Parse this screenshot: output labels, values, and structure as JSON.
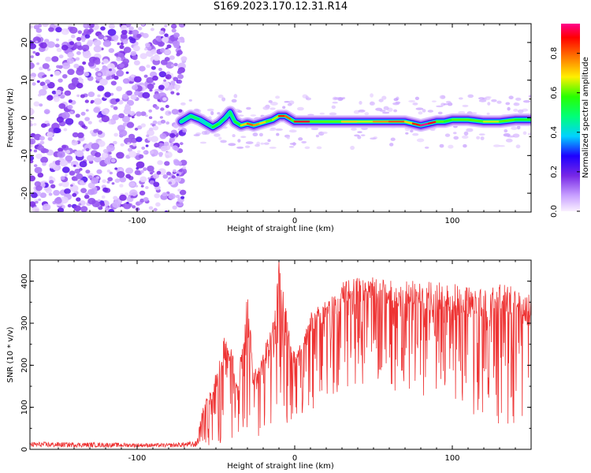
{
  "title": "S169.2023.170.12.31.R14",
  "chart_data": [
    {
      "type": "heatmap",
      "xlabel": "Height of straight line (km)",
      "ylabel": "Frequency (Hz)",
      "xlim": [
        -168,
        150
      ],
      "ylim": [
        -25,
        25
      ],
      "xticks": [
        -100,
        0,
        100
      ],
      "yticks": [
        -20,
        -10,
        0,
        10,
        20
      ],
      "description_of_content": "",
      "noise_region_x": [
        -168,
        -72
      ],
      "ridge": {
        "x": [
          -72,
          -66,
          -60,
          -56,
          -52,
          -48,
          -44,
          -41,
          -38,
          -34,
          -30,
          -26,
          -22,
          -18,
          -14,
          -10,
          -6,
          -2,
          0,
          10,
          20,
          30,
          40,
          50,
          60,
          70,
          75,
          80,
          85,
          90,
          95,
          100,
          110,
          120,
          130,
          140,
          150
        ],
        "freq": [
          -1,
          0.5,
          -0.5,
          -1.5,
          -2.5,
          -1.5,
          0,
          1.5,
          -1,
          -2,
          -1.5,
          -2,
          -1.5,
          -1,
          -0.5,
          0.5,
          0.5,
          -0.5,
          -1,
          -1,
          -1,
          -1,
          -1,
          -1,
          -1,
          -1,
          -1.5,
          -2,
          -1.5,
          -1,
          -1,
          -0.5,
          -0.5,
          -1,
          -1,
          -0.5,
          -0.5
        ],
        "amplitude": [
          0.45,
          0.5,
          0.4,
          0.45,
          0.55,
          0.5,
          0.45,
          0.5,
          0.55,
          0.7,
          0.8,
          0.75,
          0.7,
          0.6,
          0.65,
          0.85,
          0.8,
          0.6,
          0.9,
          0.6,
          0.6,
          0.7,
          0.65,
          0.75,
          0.8,
          0.7,
          0.85,
          0.95,
          0.9,
          0.6,
          0.55,
          0.6,
          0.6,
          0.65,
          0.6,
          0.55,
          0.5
        ]
      }
    },
    {
      "type": "colorbar",
      "label": "Normalized spectral amplitude",
      "range": [
        0,
        0.95
      ],
      "ticks": [
        "0.0",
        "0.2",
        "0.4",
        "0.6",
        "0.8"
      ],
      "tick_values": [
        0,
        0.2,
        0.4,
        0.6,
        0.8
      ]
    },
    {
      "type": "line",
      "xlabel": "Height of straight line (km)",
      "ylabel": "SNR (10 * v/v)",
      "xlim": [
        -168,
        150
      ],
      "ylim": [
        0,
        450
      ],
      "xticks": [
        -100,
        0,
        100
      ],
      "yticks": [
        0,
        100,
        200,
        300,
        400
      ],
      "color": "#ee3333",
      "envelope": {
        "x": [
          -168,
          -120,
          -80,
          -62,
          -58,
          -52,
          -45,
          -40,
          -36,
          -30,
          -26,
          -22,
          -18,
          -14,
          -10,
          -5,
          0,
          5,
          10,
          15,
          20,
          25,
          30,
          40,
          50,
          60,
          70,
          80,
          90,
          100,
          110,
          120,
          130,
          140,
          150
        ],
        "upper": [
          18,
          16,
          14,
          20,
          110,
          150,
          270,
          250,
          170,
          380,
          190,
          200,
          260,
          300,
          450,
          330,
          230,
          260,
          330,
          340,
          355,
          370,
          400,
          410,
          410,
          405,
          400,
          405,
          400,
          395,
          390,
          380,
          395,
          385,
          370
        ],
        "lower": [
          5,
          5,
          5,
          5,
          8,
          10,
          12,
          10,
          12,
          20,
          25,
          30,
          35,
          40,
          50,
          60,
          70,
          80,
          90,
          100,
          110,
          120,
          140,
          150,
          150,
          140,
          130,
          120,
          100,
          90,
          80,
          70,
          60,
          60,
          60
        ]
      }
    }
  ]
}
